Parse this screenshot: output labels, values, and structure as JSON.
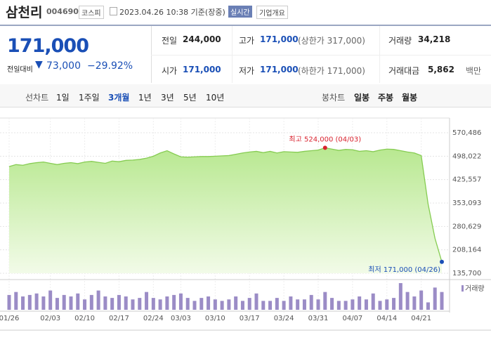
{
  "header": {
    "name": "삼천리",
    "code": "004690",
    "market": "코스피",
    "time": "2023.04.26 10:38 기준(장중)",
    "realtime": "실시간",
    "company": "기업개요"
  },
  "summary": {
    "price": "171,000",
    "change_label": "전일대비",
    "change": "73,000",
    "rate": "−29.92%"
  },
  "table": {
    "rows": [
      [
        [
          "전일",
          "244,000",
          ""
        ],
        [
          "고가",
          "171,000",
          "(상한가 317,000)"
        ],
        [
          "거래량",
          "34,218",
          ""
        ]
      ],
      [
        [
          "시가",
          "171,000",
          ""
        ],
        [
          "저가",
          "171,000",
          "(하한가 171,000)"
        ],
        [
          "거래대금",
          "5,862",
          "백만"
        ]
      ]
    ]
  },
  "tabs": {
    "line_label": "선차트",
    "line": [
      "1일",
      "1주일",
      "3개월",
      "1년",
      "3년",
      "5년",
      "10년"
    ],
    "active": "3개월",
    "candle_label": "봉차트",
    "candle": [
      "일봉",
      "주봉",
      "월봉"
    ]
  },
  "chart_data": {
    "type": "line",
    "color": "#86cc52",
    "categories": [
      "01/26",
      null,
      null,
      null,
      null,
      null,
      "02/03",
      null,
      null,
      null,
      null,
      "02/10",
      null,
      null,
      null,
      null,
      "02/17",
      null,
      null,
      null,
      null,
      "02/24",
      null,
      null,
      null,
      "03/03",
      null,
      null,
      null,
      null,
      "03/10",
      null,
      null,
      null,
      null,
      "03/17",
      null,
      null,
      null,
      null,
      "03/24",
      null,
      null,
      null,
      null,
      "03/31",
      null,
      null,
      null,
      null,
      "04/07",
      null,
      null,
      null,
      null,
      "04/14",
      null,
      null,
      null,
      null,
      "04/21",
      null,
      null,
      null
    ],
    "values": [
      466000,
      472000,
      470000,
      475000,
      478000,
      480000,
      476000,
      472000,
      476000,
      478000,
      475000,
      480000,
      482000,
      479000,
      476000,
      483000,
      481000,
      485000,
      486000,
      488000,
      492000,
      498000,
      508000,
      515000,
      505000,
      496000,
      495000,
      496000,
      497000,
      497000,
      498000,
      499000,
      500000,
      504000,
      508000,
      511000,
      513000,
      509000,
      513000,
      508000,
      512000,
      511000,
      510000,
      513000,
      515000,
      517000,
      524000,
      520000,
      516000,
      519000,
      518000,
      513000,
      515000,
      512000,
      517000,
      520000,
      519000,
      515000,
      511000,
      508000,
      500000,
      350000,
      244000,
      171000
    ],
    "ylim": [
      135700,
      570486
    ],
    "yticks": [
      {
        "value": 135700,
        "label": "135,700"
      },
      {
        "value": 208164,
        "label": "208,164"
      },
      {
        "value": 280629,
        "label": "280,629"
      },
      {
        "value": 353093,
        "label": "353,093"
      },
      {
        "value": 425557,
        "label": "425,557"
      },
      {
        "value": 498022,
        "label": "498,022"
      },
      {
        "value": 570486,
        "label": "570,486"
      }
    ],
    "high_label": "최고 524,000 (04/03)",
    "low_label": "최저 171,000 (04/26)",
    "volume": {
      "name": "거래량",
      "color": "#9b8cc6",
      "values": [
        20,
        24,
        18,
        20,
        22,
        18,
        26,
        16,
        20,
        18,
        22,
        14,
        20,
        26,
        18,
        16,
        20,
        18,
        14,
        16,
        24,
        16,
        14,
        18,
        20,
        22,
        16,
        12,
        16,
        18,
        14,
        12,
        14,
        18,
        12,
        16,
        22,
        12,
        12,
        16,
        12,
        18,
        14,
        14,
        20,
        14,
        24,
        16,
        12,
        12,
        14,
        18,
        14,
        22,
        12,
        14,
        16,
        36,
        24,
        18,
        26,
        10,
        30,
        24
      ]
    }
  }
}
